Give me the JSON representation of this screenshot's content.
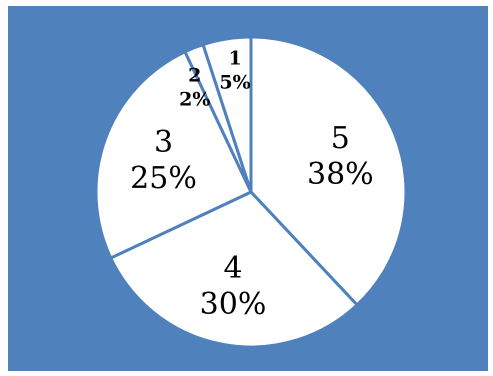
{
  "chart_data": {
    "type": "pie",
    "categories": [
      "5",
      "4",
      "3",
      "2",
      "1"
    ],
    "values": [
      38,
      30,
      25,
      2,
      5
    ],
    "percent_labels": [
      "38%",
      "30%",
      "25%",
      "2%",
      "5%"
    ],
    "title": "",
    "legend": "none",
    "colors": {
      "background": "#4f81bd",
      "slice_fill": "#ffffff",
      "slice_border": "#4f81bd",
      "label_text": "#000000"
    }
  }
}
